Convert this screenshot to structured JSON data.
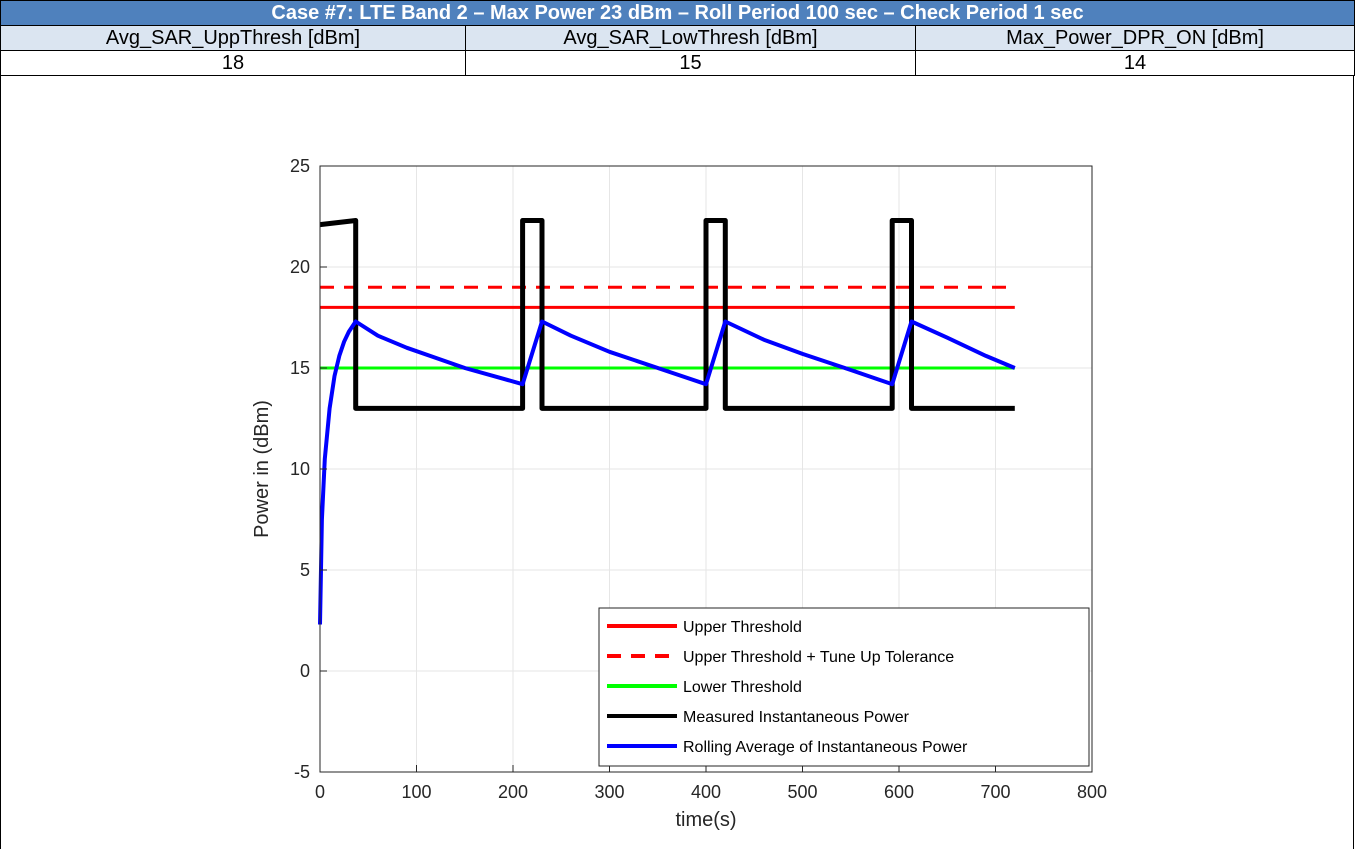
{
  "header": {
    "title": "Case #7: LTE Band 2 – Max Power 23 dBm – Roll Period 100 sec – Check Period 1 sec",
    "columns": [
      "Avg_SAR_UppThresh [dBm]",
      "Avg_SAR_LowThresh [dBm]",
      "Max_Power_DPR_ON [dBm]"
    ],
    "values": [
      "18",
      "15",
      "14"
    ]
  },
  "chart_data": {
    "type": "line",
    "title": "",
    "xlabel": "time(s)",
    "ylabel": "Power in (dBm)",
    "xlim": [
      0,
      800
    ],
    "ylim": [
      -5,
      25
    ],
    "xticks": [
      0,
      100,
      200,
      300,
      400,
      500,
      600,
      700,
      800
    ],
    "yticks": [
      -5,
      0,
      5,
      10,
      15,
      20,
      25
    ],
    "grid": true,
    "legend_position": "bottom-right",
    "series": [
      {
        "name": "Upper Threshold",
        "color": "#ff0000",
        "style": "solid",
        "x": [
          0,
          720
        ],
        "y": [
          18,
          18
        ]
      },
      {
        "name": "Upper Threshold + Tune Up Tolerance",
        "color": "#ff0000",
        "style": "dashed",
        "x": [
          0,
          720
        ],
        "y": [
          19,
          19
        ]
      },
      {
        "name": "Lower Threshold",
        "color": "#00ff00",
        "style": "solid",
        "x": [
          0,
          720
        ],
        "y": [
          15,
          15
        ]
      },
      {
        "name": "Measured Instantaneous Power",
        "color": "#000000",
        "style": "solid",
        "x": [
          0,
          37,
          37,
          210,
          210,
          230,
          230,
          400,
          400,
          420,
          420,
          593,
          593,
          613,
          613,
          720
        ],
        "y": [
          22.1,
          22.3,
          13,
          13,
          22.3,
          22.3,
          13,
          13,
          22.3,
          22.3,
          13,
          13,
          22.3,
          22.3,
          13,
          13
        ]
      },
      {
        "name": "Rolling Average of Instantaneous Power",
        "color": "#0000ff",
        "style": "solid",
        "x": [
          0,
          2,
          5,
          10,
          15,
          20,
          25,
          30,
          37,
          60,
          90,
          120,
          150,
          180,
          210,
          230,
          260,
          300,
          350,
          400,
          420,
          460,
          500,
          550,
          593,
          613,
          650,
          690,
          720
        ],
        "y": [
          2.3,
          7.5,
          10.5,
          13,
          14.6,
          15.6,
          16.3,
          16.8,
          17.3,
          16.6,
          16,
          15.5,
          15,
          14.6,
          14.2,
          17.3,
          16.6,
          15.8,
          15,
          14.2,
          17.3,
          16.4,
          15.7,
          14.9,
          14.2,
          17.3,
          16.5,
          15.6,
          15
        ]
      }
    ]
  }
}
